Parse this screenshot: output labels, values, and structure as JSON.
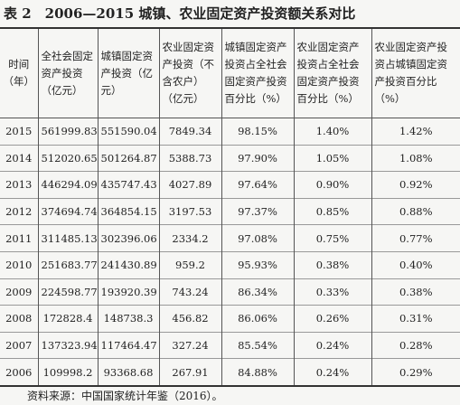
{
  "title": "表 2　2006—2015 城镇、农业固定资产投资额关系对比",
  "table": {
    "headers": [
      "时间（年）",
      "全社会固定资产投资（亿元）",
      "城镇固定资产投资（亿元）",
      "农业固定资产投资（不含农户）（亿元）",
      "城镇固定资产投资占全社会固定资产投资百分比（%）",
      "农业固定资产投资占全社会固定资产投资百分比（%）",
      "农业固定资产投资占城镇固定资产投资百分比（%）"
    ],
    "rows": [
      [
        "2015",
        "561999.83",
        "551590.04",
        "7849.34",
        "98.15%",
        "1.40%",
        "1.42%"
      ],
      [
        "2014",
        "512020.65",
        "501264.87",
        "5388.73",
        "97.90%",
        "1.05%",
        "1.08%"
      ],
      [
        "2013",
        "446294.09",
        "435747.43",
        "4027.89",
        "97.64%",
        "0.90%",
        "0.92%"
      ],
      [
        "2012",
        "374694.74",
        "364854.15",
        "3197.53",
        "97.37%",
        "0.85%",
        "0.88%"
      ],
      [
        "2011",
        "311485.13",
        "302396.06",
        "2334.2",
        "97.08%",
        "0.75%",
        "0.77%"
      ],
      [
        "2010",
        "251683.77",
        "241430.89",
        "959.2",
        "95.93%",
        "0.38%",
        "0.40%"
      ],
      [
        "2009",
        "224598.77",
        "193920.39",
        "743.24",
        "86.34%",
        "0.33%",
        "0.38%"
      ],
      [
        "2008",
        "172828.4",
        "148738.3",
        "456.82",
        "86.06%",
        "0.26%",
        "0.31%"
      ],
      [
        "2007",
        "137323.94",
        "117464.47",
        "327.24",
        "85.54%",
        "0.24%",
        "0.28%"
      ],
      [
        "2006",
        "109998.2",
        "93368.68",
        "267.91",
        "84.88%",
        "0.24%",
        "0.29%"
      ]
    ]
  },
  "source": "资料来源：中国国家统计年鉴（2016）。"
}
